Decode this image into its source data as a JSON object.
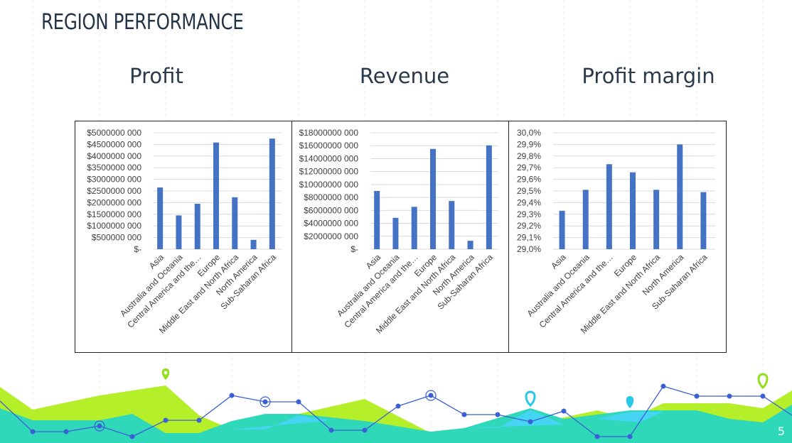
{
  "slide": {
    "title": "REGION PERFORMANCE",
    "page_number": "5"
  },
  "colors": {
    "bar": "#4472c4",
    "title": "#243447",
    "decor_green": "#b5ef2a",
    "decor_teal": "#2ed8b8",
    "decor_cyan": "#45d4f2",
    "decor_line": "#3b5fd4"
  },
  "chart_data": [
    {
      "type": "bar",
      "title": "Profit",
      "categories": [
        "Asia",
        "Australia and Oceania",
        "Central America and the…",
        "Europe",
        "Middle East and North Africa",
        "North America",
        "Sub-Saharan Africa"
      ],
      "values": [
        2650000000,
        1450000000,
        1950000000,
        4580000000,
        2230000000,
        400000000,
        4750000000
      ],
      "ylim": [
        0,
        5000000000
      ],
      "yticks": [
        "$-",
        "$500000 000",
        "$1000000 000",
        "$1500000 000",
        "$2000000 000",
        "$2500000 000",
        "$3000000 000",
        "$3500000 000",
        "$4000000 000",
        "$4500000 000",
        "$5000000 000"
      ],
      "grid": true
    },
    {
      "type": "bar",
      "title": "Revenue",
      "categories": [
        "Asia",
        "Australia and Oceania",
        "Central America and the…",
        "Europe",
        "Middle East and North Africa",
        "North America",
        "Sub-Saharan Africa"
      ],
      "values": [
        9000000000,
        4850000000,
        6550000000,
        15500000000,
        7450000000,
        1300000000,
        16050000000
      ],
      "ylim": [
        0,
        18000000000
      ],
      "yticks": [
        "$-",
        "$2000000 000",
        "$4000000 000",
        "$6000000 000",
        "$8000000 000",
        "$10000000 000",
        "$12000000 000",
        "$14000000 000",
        "$16000000 000",
        "$18000000 000"
      ],
      "grid": true
    },
    {
      "type": "bar",
      "title": "Profit margin",
      "categories": [
        "Asia",
        "Australia and Oceania",
        "Central America and the…",
        "Europe",
        "Middle East and North Africa",
        "North America",
        "Sub-Saharan Africa"
      ],
      "values": [
        29.33,
        29.51,
        29.73,
        29.66,
        29.51,
        29.9,
        29.49
      ],
      "ylim": [
        29.0,
        30.0
      ],
      "yticks": [
        "29,0%",
        "29,1%",
        "29,2%",
        "29,3%",
        "29,4%",
        "29,5%",
        "29,6%",
        "29,7%",
        "29,8%",
        "29,9%",
        "30,0%"
      ],
      "grid": true
    }
  ]
}
